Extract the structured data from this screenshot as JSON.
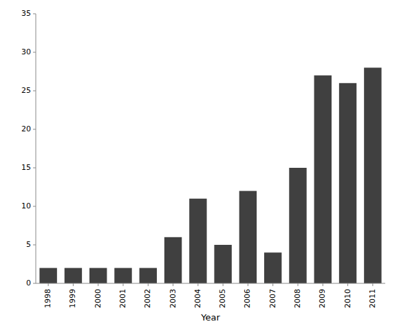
{
  "chart_data": {
    "type": "bar",
    "xlabel": "Year",
    "categories": [
      "1998",
      "1999",
      "2000",
      "2001",
      "2002",
      "2003",
      "2004",
      "2005",
      "2006",
      "2007",
      "2008",
      "2009",
      "2010",
      "2011"
    ],
    "values": [
      2,
      2,
      2,
      2,
      2,
      6,
      11,
      5,
      12,
      4,
      15,
      27,
      26,
      28
    ],
    "color": "#404040",
    "ylim": [
      0,
      35
    ],
    "yticks": [
      0,
      5,
      10,
      15,
      20,
      25,
      30,
      35
    ],
    "grid": false
  }
}
